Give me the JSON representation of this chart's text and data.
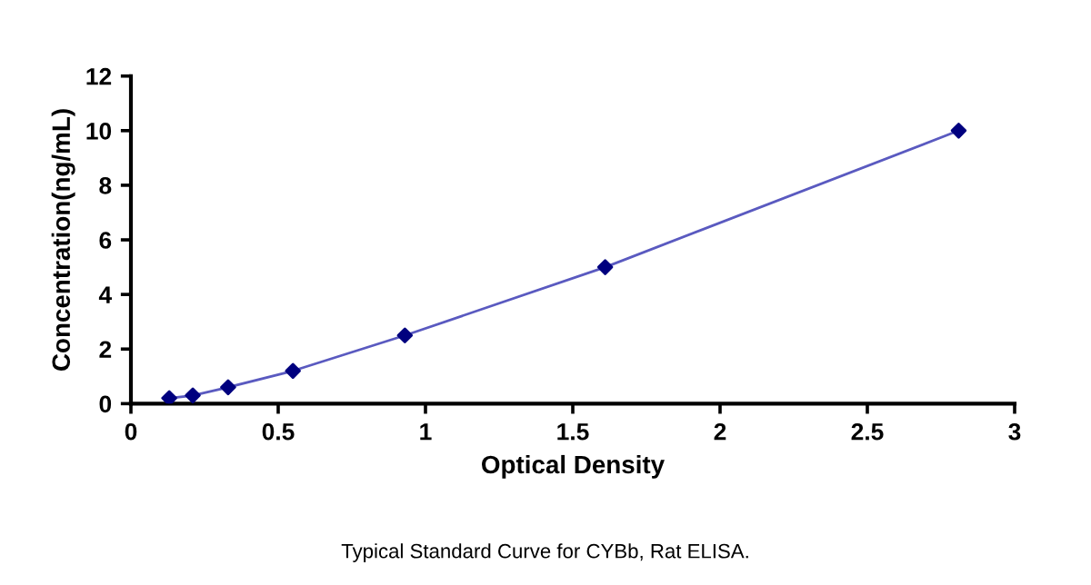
{
  "chart_data": {
    "type": "scatter",
    "xlabel": "Optical Density",
    "ylabel": "Concentration(ng/mL)",
    "annotations": [
      "Typical Standard Curve for CYBb, Rat ELISA."
    ],
    "series": [
      {
        "type": "line",
        "color": "#5a5ac0",
        "x": [
          0.13,
          0.21,
          0.33,
          0.55,
          0.93,
          1.61,
          2.81
        ],
        "values": [
          0.2,
          0.3,
          0.6,
          1.2,
          2.5,
          5,
          10
        ],
        "marker": "none"
      },
      {
        "color": "#00007f",
        "x": [
          0.13,
          0.21,
          0.33,
          0.55,
          0.93,
          1.61,
          2.81
        ],
        "values": [
          0.2,
          0.3,
          0.6,
          1.2,
          2.5,
          5,
          10
        ],
        "marker": "diamond"
      }
    ],
    "xlim": [
      0,
      3
    ],
    "xticks": [
      0,
      0.5,
      1,
      1.5,
      2,
      2.5,
      3
    ],
    "ylim": [
      0,
      12
    ],
    "yticks": [
      0,
      2,
      4,
      6,
      8,
      10,
      12
    ],
    "grid": false,
    "legend": false
  }
}
